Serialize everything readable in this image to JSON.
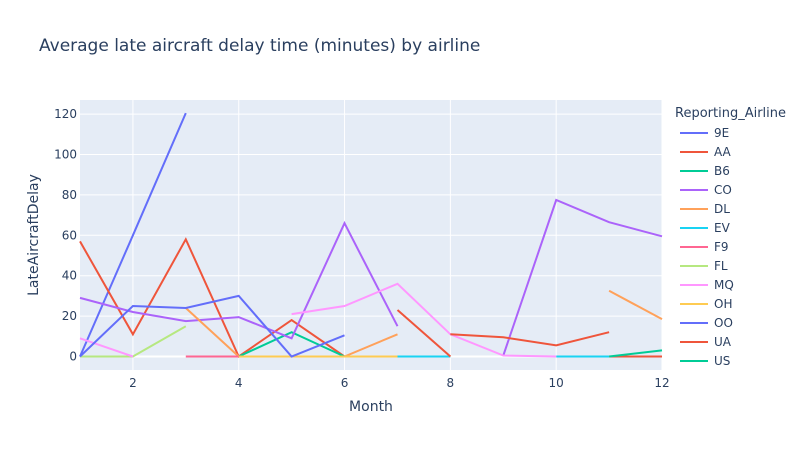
{
  "chart_data": {
    "type": "line",
    "title": "Average late aircraft delay time (minutes) by airline",
    "xlabel": "Month",
    "ylabel": "LateAircraftDelay",
    "xlim": [
      1,
      12
    ],
    "ylim": [
      -6.7,
      127
    ],
    "x_ticks": [
      2,
      4,
      6,
      8,
      10,
      12
    ],
    "y_ticks": [
      0,
      20,
      40,
      60,
      80,
      100,
      120
    ],
    "grid": true,
    "background": "#e5ecf6",
    "legend_title": "Reporting_Airline",
    "legend_position": "right",
    "series": [
      {
        "name": "9E",
        "color": "#636efa",
        "points": [
          [
            1,
            0
          ],
          [
            2,
            60
          ],
          [
            3,
            120.5
          ]
        ]
      },
      {
        "name": "AA",
        "color": "#ef553b",
        "points": [
          [
            1,
            57
          ],
          [
            2,
            11
          ],
          [
            3,
            58
          ],
          [
            4,
            0
          ],
          [
            5,
            18
          ],
          [
            6,
            0
          ]
        ]
      },
      {
        "name": "B6",
        "color": "#00cc96",
        "points": [
          [
            4,
            0
          ],
          [
            5,
            12
          ],
          [
            6,
            0
          ]
        ]
      },
      {
        "name": "CO",
        "color": "#ab63fa",
        "points": [
          [
            1,
            29
          ],
          [
            2,
            22
          ],
          [
            3,
            17.5
          ],
          [
            4,
            19.5
          ],
          [
            5,
            9
          ],
          [
            6,
            66
          ],
          [
            7,
            15
          ],
          [
            9,
            0.5
          ],
          [
            10,
            77.5
          ],
          [
            11,
            66.5
          ],
          [
            12,
            59.5
          ]
        ]
      },
      {
        "name": "DL",
        "color": "#ffa15a",
        "points": [
          [
            3,
            24
          ],
          [
            4,
            0
          ],
          [
            5,
            0
          ],
          [
            6,
            0
          ],
          [
            7,
            11
          ],
          [
            11,
            32.5
          ],
          [
            12,
            18.5
          ]
        ]
      },
      {
        "name": "EV",
        "color": "#19d3f3",
        "points": [
          [
            7,
            0
          ],
          [
            8,
            0
          ],
          [
            10,
            0
          ],
          [
            11,
            0
          ]
        ]
      },
      {
        "name": "F9",
        "color": "#ff6692",
        "points": [
          [
            3,
            0
          ],
          [
            4,
            0
          ]
        ]
      },
      {
        "name": "FL",
        "color": "#b6e880",
        "points": [
          [
            1,
            0
          ],
          [
            2,
            0
          ],
          [
            3,
            15
          ]
        ]
      },
      {
        "name": "MQ",
        "color": "#ff97ff",
        "points": [
          [
            1,
            9
          ],
          [
            2,
            0
          ],
          [
            5,
            21
          ],
          [
            6,
            25
          ],
          [
            7,
            36
          ],
          [
            8,
            11
          ],
          [
            9,
            0.5
          ],
          [
            10,
            0
          ]
        ]
      },
      {
        "name": "OH",
        "color": "#fecb52",
        "points": [
          [
            4,
            0
          ],
          [
            5,
            0
          ],
          [
            6,
            0
          ],
          [
            7,
            0
          ]
        ]
      },
      {
        "name": "OO",
        "color": "#636efa",
        "points": [
          [
            1,
            0
          ],
          [
            2,
            25
          ],
          [
            3,
            24
          ],
          [
            4,
            30
          ],
          [
            5,
            0
          ],
          [
            6,
            10.5
          ]
        ]
      },
      {
        "name": "UA",
        "color": "#ef553b",
        "points": [
          [
            7,
            23
          ],
          [
            8,
            0
          ],
          [
            8,
            11
          ],
          [
            9,
            9.5
          ],
          [
            10,
            5.5
          ],
          [
            11,
            12
          ],
          [
            11,
            0
          ],
          [
            12,
            0
          ]
        ]
      },
      {
        "name": "US",
        "color": "#00cc96",
        "points": [
          [
            11,
            0
          ],
          [
            12,
            3
          ]
        ]
      }
    ]
  }
}
